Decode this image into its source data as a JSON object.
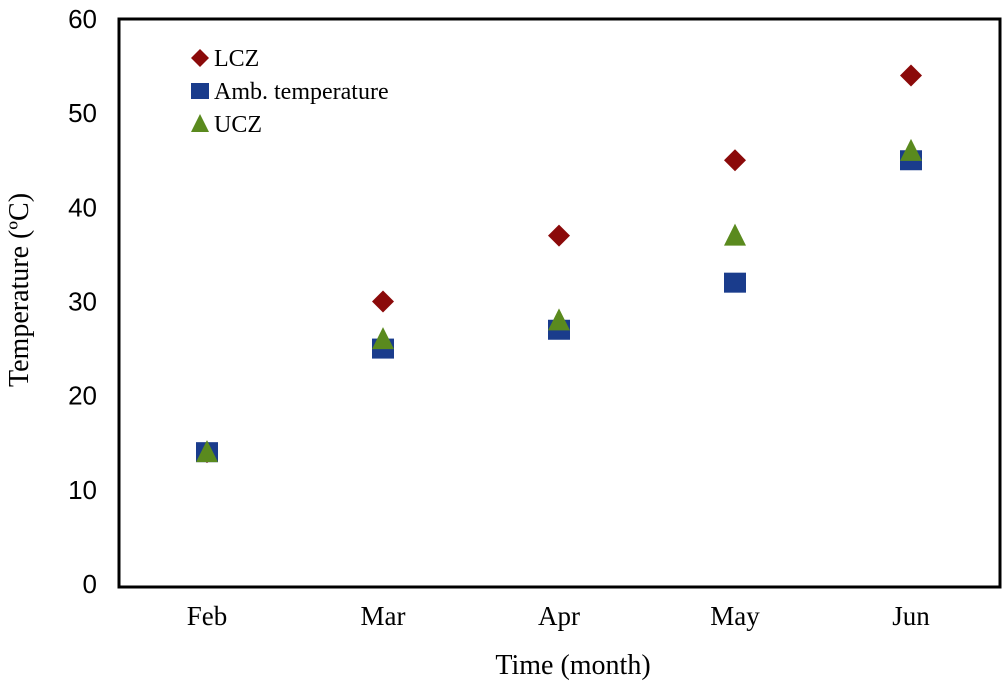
{
  "chart_data": {
    "type": "scatter",
    "title": "",
    "xlabel": "Time (month)",
    "ylabel": "Temperature (ºC)",
    "categories": [
      "Feb",
      "Mar",
      "Apr",
      "May",
      "Jun"
    ],
    "ylim": [
      0,
      60
    ],
    "yticks": [
      "0",
      "10",
      "20",
      "30",
      "40",
      "50",
      "60"
    ],
    "grid": false,
    "legend_position": "top-left",
    "series": [
      {
        "name": "LCZ",
        "marker": "diamond",
        "color": "#8b0a0a",
        "values": [
          14,
          30,
          37,
          45,
          54
        ]
      },
      {
        "name": "Amb. temperature",
        "marker": "square",
        "color": "#1a3c8c",
        "values": [
          14,
          25,
          27,
          32,
          45
        ]
      },
      {
        "name": "UCZ",
        "marker": "triangle",
        "color": "#5a8a1e",
        "values": [
          14,
          26,
          28,
          37,
          46
        ]
      }
    ]
  }
}
